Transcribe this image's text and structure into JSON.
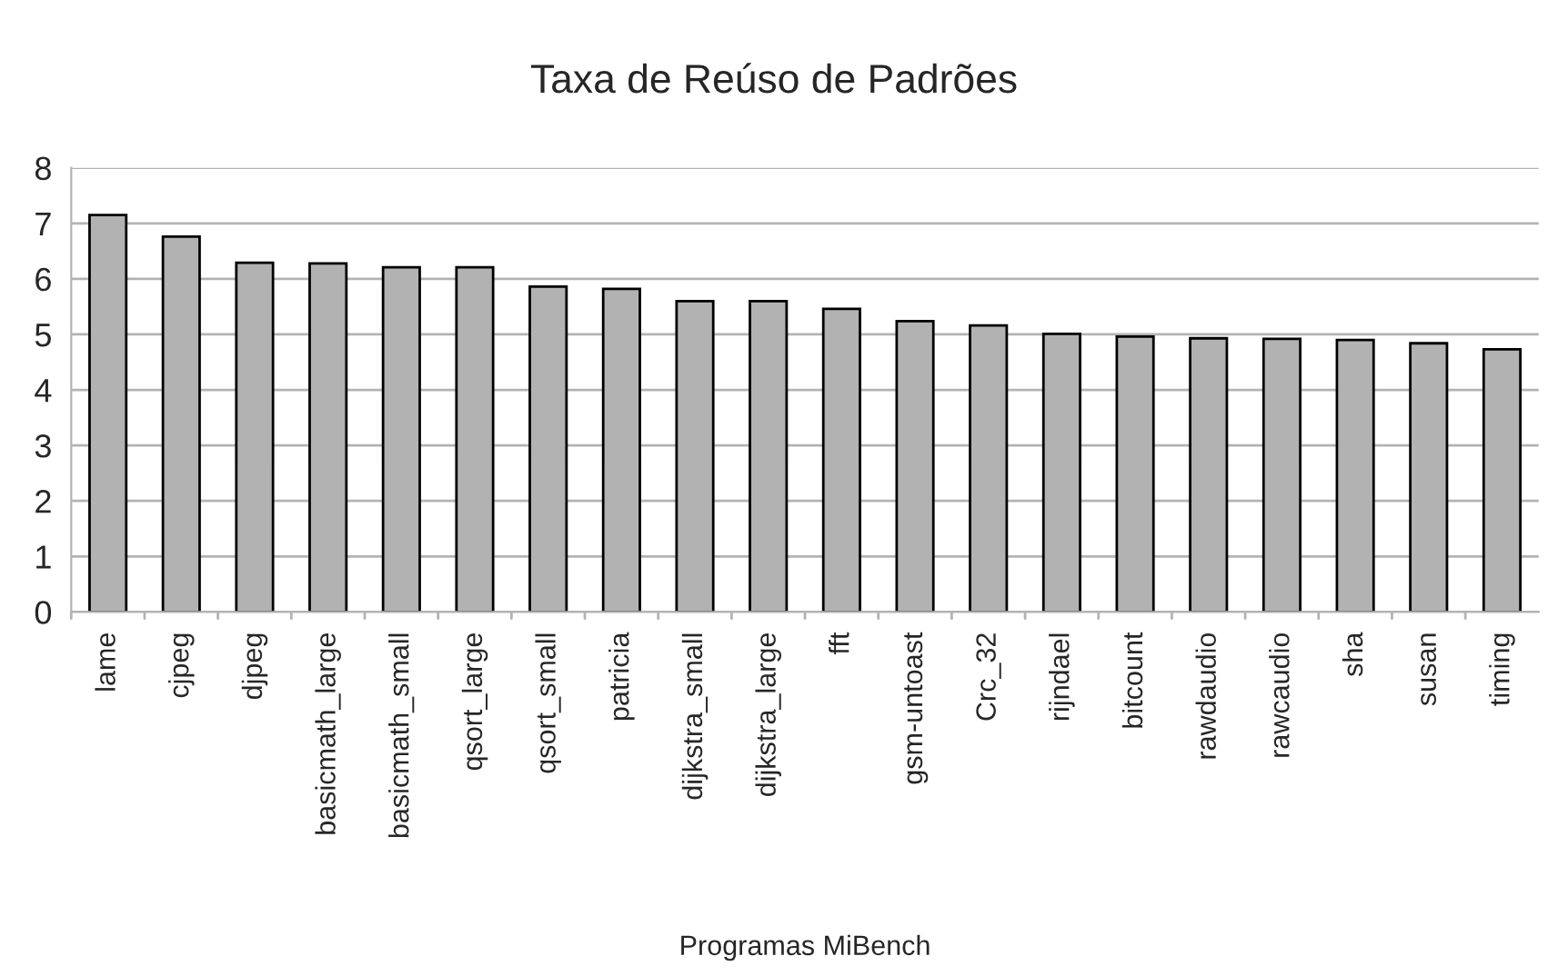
{
  "chart_data": {
    "type": "bar",
    "title": "Taxa de Reúso de Padrões",
    "xlabel": "Programas MiBench",
    "categories": [
      "lame",
      "cjpeg",
      "djpeg",
      "basicmath_large",
      "basicmath_small",
      "qsort_large",
      "qsort_small",
      "patricia",
      "dijkstra_small",
      "dijkstra_large",
      "fft",
      "gsm-untoast",
      "Crc_32",
      "rijndael",
      "bitcount",
      "rawdaudio",
      "rawcaudio",
      "sha",
      "susan",
      "timing"
    ],
    "values": [
      7.15,
      6.76,
      6.29,
      6.28,
      6.21,
      6.21,
      5.86,
      5.82,
      5.6,
      5.6,
      5.46,
      5.24,
      5.16,
      5.01,
      4.96,
      4.93,
      4.92,
      4.9,
      4.84,
      4.73
    ],
    "color": "#b2b2b2",
    "ylim": [
      0,
      8
    ],
    "yticks": [
      0,
      1,
      2,
      3,
      4,
      5,
      6,
      7,
      8
    ],
    "grid": "y",
    "legend": false
  }
}
